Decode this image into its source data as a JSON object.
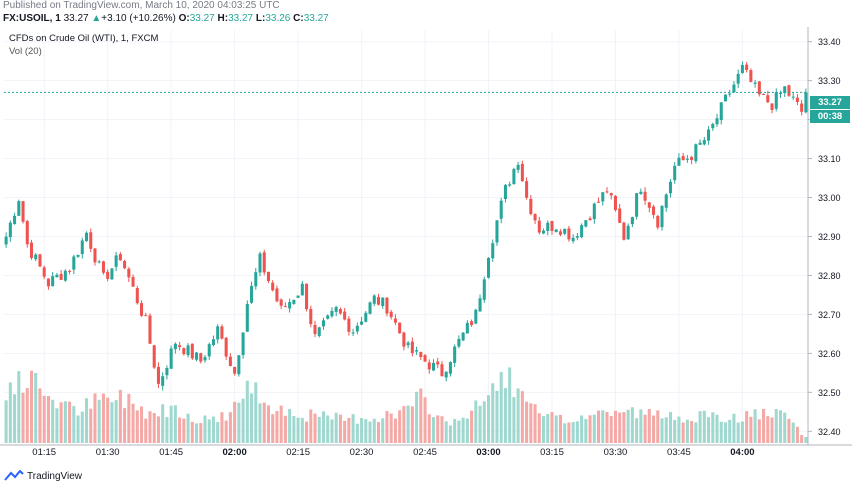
{
  "published": "Published on TradingView.com, March 10, 2020 04:03:25 UTC",
  "symbol_bar": {
    "symbol": "FX:USOIL, 1",
    "last": "33.27",
    "arrow": "▲",
    "change": "+3.10 (+10.26%)",
    "o_label": "O:",
    "o_value": "33.27",
    "h_label": "H:",
    "h_value": "33.27",
    "l_label": "L:",
    "l_value": "33.26",
    "c_label": "C:",
    "c_value": "33.27"
  },
  "legend": {
    "title": "CFDs on Crude Oil (WTI), 1, FXCM",
    "volume": "Vol (20)"
  },
  "price_tag": {
    "price": "33.27",
    "countdown": "00:38"
  },
  "footer": {
    "brand": "TradingView"
  },
  "colors": {
    "up": "#26a69a",
    "down": "#ef5350",
    "vol_up": "#9fd8cf",
    "vol_down": "#f4a9a6",
    "grid": "#f0f3fa",
    "last_line": "#26a69a"
  },
  "chart_data": {
    "type": "candlestick",
    "interval": "1 minute",
    "x_ticks": [
      "01:15",
      "01:30",
      "01:45",
      "02:00",
      "02:15",
      "02:30",
      "02:45",
      "03:00",
      "03:15",
      "03:30",
      "03:45",
      "04:00"
    ],
    "bold_ticks": [
      "02:00",
      "03:00",
      "04:00"
    ],
    "y_ticks": [
      "33.40",
      "33.30",
      "33.20",
      "33.10",
      "33.00",
      "32.90",
      "32.80",
      "32.70",
      "32.60",
      "32.50",
      "32.40"
    ],
    "ylim": [
      32.37,
      33.43
    ],
    "last_price": 33.27,
    "close_anchors": [
      [
        0,
        32.9
      ],
      [
        3,
        33.0
      ],
      [
        5,
        32.88
      ],
      [
        10,
        32.78
      ],
      [
        15,
        32.82
      ],
      [
        19,
        32.91
      ],
      [
        23,
        32.79
      ],
      [
        27,
        32.85
      ],
      [
        33,
        32.68
      ],
      [
        36,
        32.52
      ],
      [
        40,
        32.63
      ],
      [
        46,
        32.58
      ],
      [
        50,
        32.66
      ],
      [
        54,
        32.55
      ],
      [
        57,
        32.73
      ],
      [
        60,
        32.84
      ],
      [
        65,
        32.71
      ],
      [
        70,
        32.77
      ],
      [
        73,
        32.64
      ],
      [
        78,
        32.71
      ],
      [
        82,
        32.66
      ],
      [
        87,
        32.74
      ],
      [
        90,
        32.72
      ],
      [
        95,
        32.61
      ],
      [
        99,
        32.58
      ],
      [
        103,
        32.55
      ],
      [
        107,
        32.63
      ],
      [
        111,
        32.7
      ],
      [
        114,
        32.86
      ],
      [
        118,
        33.02
      ],
      [
        121,
        33.1
      ],
      [
        123,
        33.0
      ],
      [
        126,
        32.92
      ],
      [
        130,
        32.93
      ],
      [
        134,
        32.9
      ],
      [
        138,
        32.96
      ],
      [
        142,
        33.02
      ],
      [
        146,
        32.9
      ],
      [
        150,
        33.03
      ],
      [
        154,
        32.94
      ],
      [
        158,
        33.08
      ],
      [
        162,
        33.11
      ],
      [
        166,
        33.16
      ],
      [
        170,
        33.25
      ],
      [
        174,
        33.33
      ],
      [
        178,
        33.26
      ],
      [
        181,
        33.24
      ],
      [
        184,
        33.28
      ],
      [
        188,
        33.22
      ],
      [
        189,
        33.27
      ]
    ],
    "close_jitter": 0.018,
    "wick_extension": 0.012,
    "volume": {
      "unit": "relative (0-1, max = tallest bar)",
      "levels": [
        [
          0,
          0.55
        ],
        [
          6,
          0.62
        ],
        [
          10,
          0.48
        ],
        [
          16,
          0.32
        ],
        [
          22,
          0.42
        ],
        [
          28,
          0.45
        ],
        [
          34,
          0.3
        ],
        [
          40,
          0.36
        ],
        [
          46,
          0.22
        ],
        [
          52,
          0.28
        ],
        [
          58,
          0.55
        ],
        [
          62,
          0.4
        ],
        [
          68,
          0.3
        ],
        [
          74,
          0.26
        ],
        [
          80,
          0.24
        ],
        [
          86,
          0.26
        ],
        [
          92,
          0.28
        ],
        [
          98,
          0.44
        ],
        [
          104,
          0.2
        ],
        [
          110,
          0.3
        ],
        [
          115,
          0.52
        ],
        [
          118,
          0.72
        ],
        [
          121,
          0.48
        ],
        [
          126,
          0.28
        ],
        [
          132,
          0.22
        ],
        [
          138,
          0.28
        ],
        [
          144,
          0.32
        ],
        [
          150,
          0.3
        ],
        [
          156,
          0.26
        ],
        [
          162,
          0.28
        ],
        [
          168,
          0.24
        ],
        [
          174,
          0.26
        ],
        [
          180,
          0.3
        ],
        [
          185,
          0.24
        ],
        [
          189,
          0.05
        ]
      ]
    }
  }
}
